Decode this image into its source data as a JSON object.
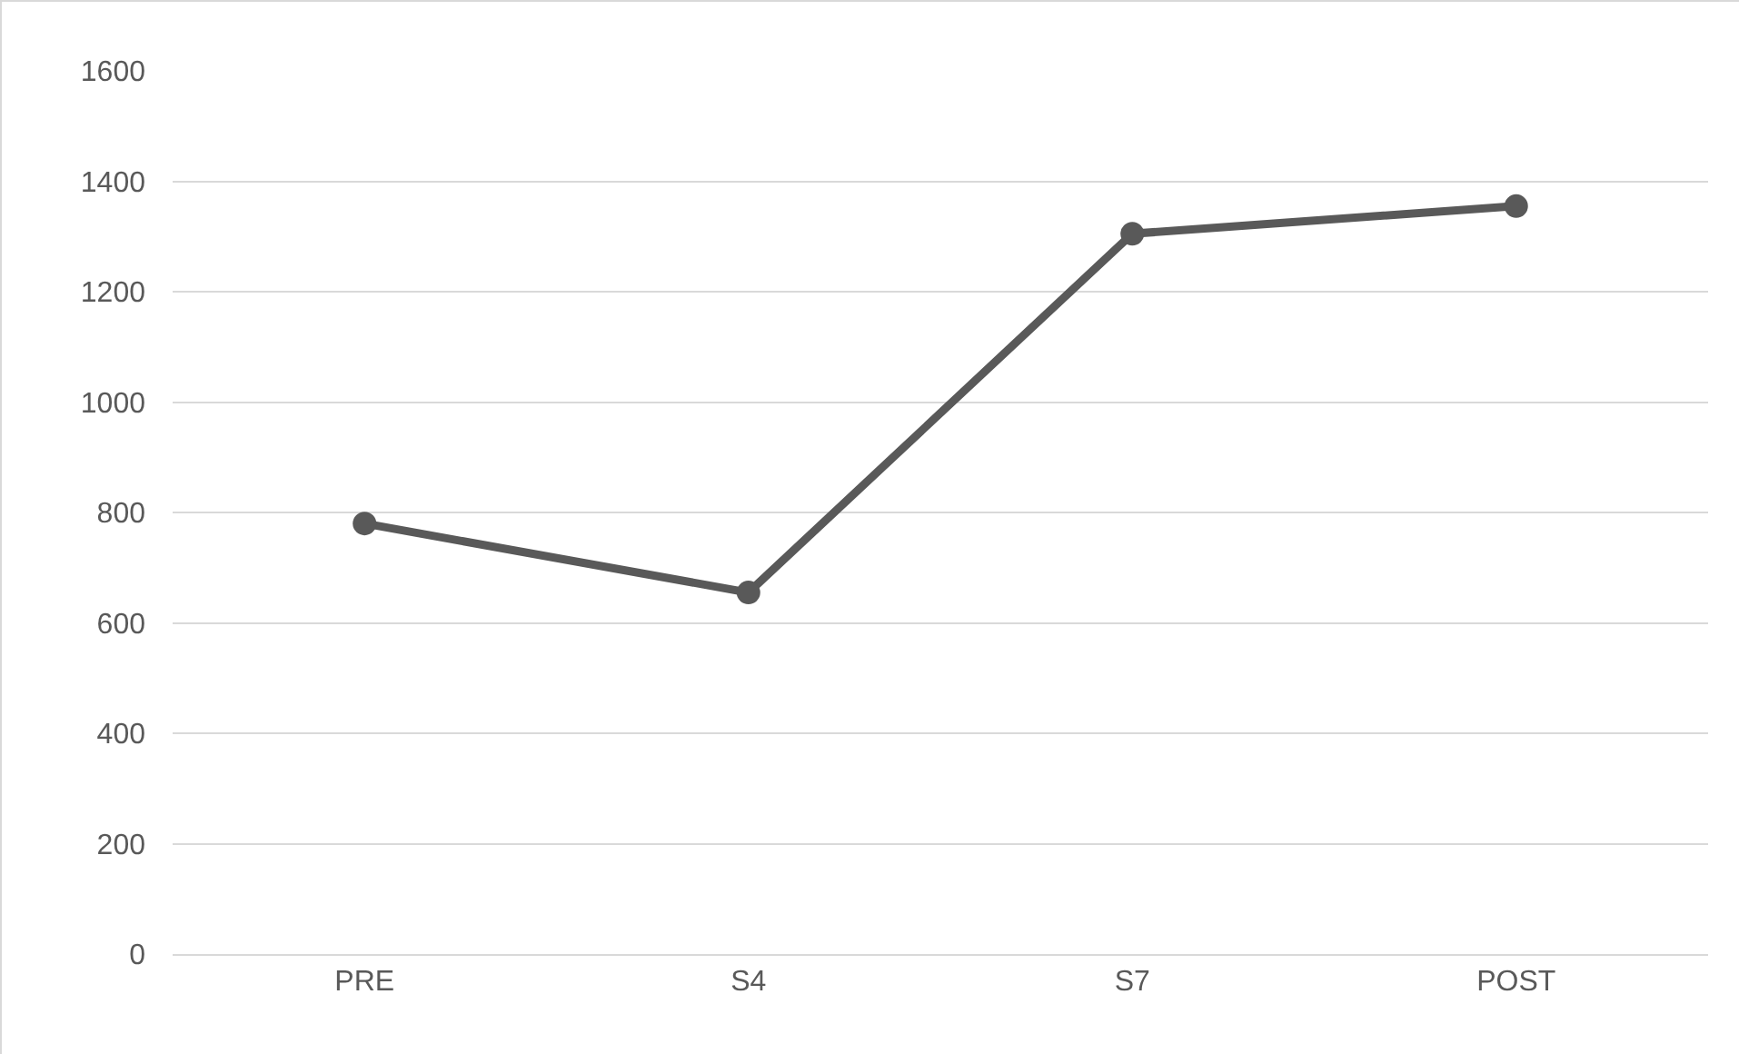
{
  "chart_data": {
    "type": "line",
    "categories": [
      "PRE",
      "S4",
      "S7",
      "POST"
    ],
    "series": [
      {
        "color": "#595959",
        "values": [
          780,
          655,
          1305,
          1355
        ]
      }
    ],
    "ylim": [
      0,
      1600
    ],
    "yticks": [
      0,
      200,
      400,
      600,
      800,
      1000,
      1200,
      1400,
      1600
    ],
    "grid": "y",
    "marker": "circle",
    "line_style": "solid"
  }
}
